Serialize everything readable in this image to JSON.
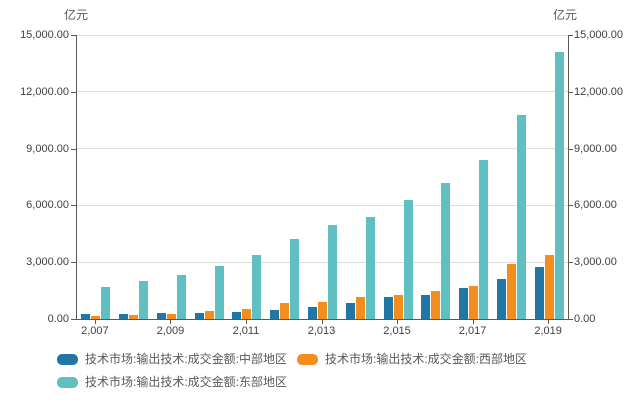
{
  "chart_data": {
    "type": "bar",
    "title": "",
    "y_unit_left": "亿元",
    "y_unit_right": "亿元",
    "x": [
      2007,
      2008,
      2009,
      2010,
      2011,
      2012,
      2013,
      2014,
      2015,
      2016,
      2017,
      2018,
      2019
    ],
    "x_ticks": [
      {
        "index": 0,
        "label": "2,007"
      },
      {
        "index": 2,
        "label": "2,009"
      },
      {
        "index": 4,
        "label": "2,011"
      },
      {
        "index": 6,
        "label": "2,013"
      },
      {
        "index": 8,
        "label": "2,015"
      },
      {
        "index": 10,
        "label": "2,017"
      },
      {
        "index": 12,
        "label": "2,019"
      }
    ],
    "ylim": [
      0,
      15000
    ],
    "y_ticks": [
      0,
      3000,
      6000,
      9000,
      12000,
      15000
    ],
    "y_tick_labels": [
      "0.00",
      "3,000.00",
      "6,000.00",
      "9,000.00",
      "12,000.00",
      "15,000.00"
    ],
    "grid": true,
    "legend_position": "bottom",
    "series": [
      {
        "name": "技术市场:输出技术:成交金额:中部地区",
        "color": "#2176a5",
        "values": [
          240,
          280,
          300,
          330,
          390,
          450,
          650,
          840,
          1160,
          1290,
          1650,
          2130,
          2750
        ]
      },
      {
        "name": "技术市场:输出技术:成交金额:西部地区",
        "color": "#f28d1e",
        "values": [
          170,
          230,
          270,
          430,
          530,
          820,
          920,
          1160,
          1250,
          1470,
          1770,
          2900,
          3380
        ]
      },
      {
        "name": "技术市场:输出技术:成交金额:东部地区",
        "color": "#5fbfc1",
        "values": [
          1700,
          2000,
          2300,
          2820,
          3400,
          4200,
          4950,
          5400,
          6300,
          7200,
          8400,
          10800,
          14100
        ]
      }
    ],
    "colors": {
      "gridline": "#dddddd",
      "axis": "#595959",
      "tick_text": "#404040",
      "legend_text": "#595959",
      "background": "#ffffff"
    }
  }
}
